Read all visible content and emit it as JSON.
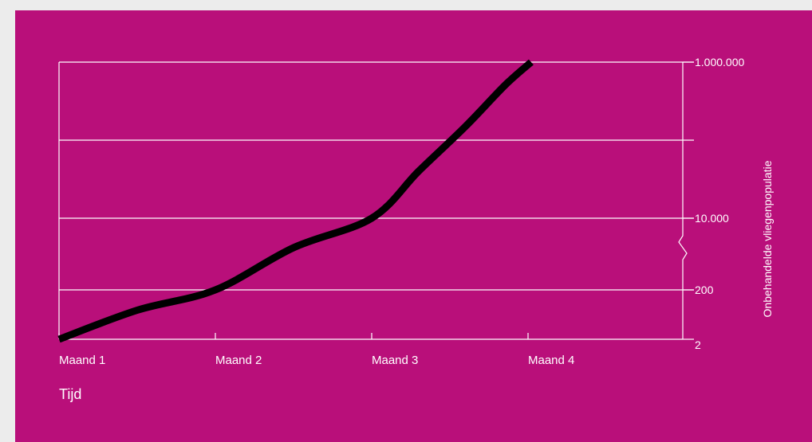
{
  "chart_data": {
    "type": "line",
    "title": "",
    "xlabel": "Tijd",
    "ylabel": "Onbehandelde vliegenpopulatie",
    "x_ticks": [
      "Maand 1",
      "Maand 2",
      "Maand 3",
      "Maand 4"
    ],
    "y_ticks": [
      "2",
      "200",
      "10.000",
      "1.000.000"
    ],
    "y_scale": "broken-log",
    "grid": true,
    "series": [
      {
        "x": [
          1,
          1.5,
          2,
          2.5,
          3,
          3.3,
          3.6,
          3.85,
          4.02
        ],
        "y": [
          2,
          30,
          200,
          2000,
          10000,
          40000,
          150000,
          500000,
          1000000
        ]
      }
    ],
    "colors": {
      "background": "#b90f7a",
      "line": "#000000",
      "grid": "#ffffff",
      "page": "#ececec"
    }
  }
}
